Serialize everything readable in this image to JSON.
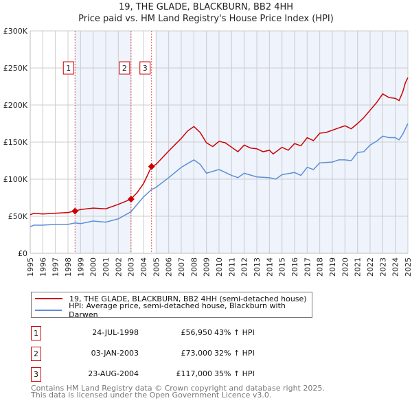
{
  "chart_data": {
    "type": "line",
    "title": "19, THE GLADE, BLACKBURN, BB2 4HH",
    "subtitle": "Price paid vs. HM Land Registry's House Price Index (HPI)",
    "xlim": [
      1995,
      2025
    ],
    "ylim": [
      0,
      300000
    ],
    "yticks": [
      {
        "v": 0,
        "label": "£0"
      },
      {
        "v": 50000,
        "label": "£50K"
      },
      {
        "v": 100000,
        "label": "£100K"
      },
      {
        "v": 150000,
        "label": "£150K"
      },
      {
        "v": 200000,
        "label": "£200K"
      },
      {
        "v": 250000,
        "label": "£250K"
      },
      {
        "v": 300000,
        "label": "£300K"
      }
    ],
    "xticks": [
      "1995",
      "1996",
      "1997",
      "1998",
      "1999",
      "2000",
      "2001",
      "2002",
      "2003",
      "2004",
      "2005",
      "2006",
      "2007",
      "2008",
      "2009",
      "2010",
      "2011",
      "2012",
      "2013",
      "2014",
      "2015",
      "2016",
      "2017",
      "2018",
      "2019",
      "2020",
      "2021",
      "2022",
      "2023",
      "2024",
      "2025"
    ],
    "grid": true,
    "series": [
      {
        "name": "19, THE GLADE, BLACKBURN, BB2 4HH (semi-detached house)",
        "color": "#cc0000",
        "x": [
          1995,
          1995.3,
          1996,
          1997,
          1998,
          1998.56,
          1999,
          2000,
          2001,
          2002,
          2003,
          2003.5,
          2004,
          2004.64,
          2005,
          2006,
          2007,
          2007.5,
          2008,
          2008.5,
          2009,
          2009.5,
          2010,
          2010.5,
          2011,
          2011.5,
          2012,
          2012.5,
          2013,
          2013.5,
          2014,
          2014.3,
          2015,
          2015.5,
          2016,
          2016.5,
          2017,
          2017.5,
          2018,
          2018.5,
          2019,
          2019.5,
          2020,
          2020.5,
          2021,
          2021.5,
          2022,
          2022.5,
          2023,
          2023.5,
          2024,
          2024.3,
          2024.6,
          2024.8,
          2025
        ],
        "y": [
          52000,
          54000,
          53000,
          54000,
          55000,
          57000,
          59000,
          61000,
          60000,
          66000,
          73000,
          82000,
          94000,
          117000,
          120000,
          138000,
          155000,
          165000,
          171000,
          163000,
          149000,
          144000,
          151000,
          149000,
          143000,
          137000,
          146000,
          142000,
          141000,
          137000,
          139000,
          134000,
          143000,
          139000,
          148000,
          145000,
          156000,
          152000,
          162000,
          163000,
          166000,
          169000,
          172000,
          168000,
          175000,
          183000,
          193000,
          203000,
          215000,
          210000,
          209000,
          206000,
          218000,
          230000,
          237000
        ]
      },
      {
        "name": "HPI: Average price, semi-detached house, Blackburn with Darwen",
        "color": "#5b8fd6",
        "x": [
          1995,
          1995.3,
          1996,
          1997,
          1998,
          1998.56,
          1999,
          2000,
          2001,
          2002,
          2003,
          2004,
          2004.64,
          2005,
          2006,
          2007,
          2008,
          2008.5,
          2009,
          2010,
          2011,
          2011.5,
          2012,
          2013,
          2014,
          2014.5,
          2015,
          2016,
          2016.5,
          2017,
          2017.5,
          2018,
          2019,
          2019.5,
          2020,
          2020.5,
          2021,
          2021.5,
          2022,
          2022.5,
          2023,
          2023.5,
          2024,
          2024.3,
          2024.6,
          2025
        ],
        "y": [
          36000,
          38000,
          38000,
          39000,
          39000,
          41000,
          40000,
          43500,
          42000,
          46500,
          56000,
          76000,
          86000,
          89000,
          102000,
          116000,
          126000,
          120000,
          108000,
          113000,
          105000,
          102000,
          108000,
          103000,
          102000,
          100000,
          106000,
          109000,
          105000,
          116000,
          113000,
          122000,
          123000,
          126000,
          126000,
          125000,
          136000,
          137000,
          146000,
          151000,
          158000,
          156000,
          156000,
          153000,
          161000,
          175000
        ]
      }
    ],
    "sales": [
      {
        "n": "1",
        "x": 1998.56,
        "date": "24-JUL-1998",
        "price": 56950,
        "price_label": "£56,950",
        "hpi": "43% ↑ HPI"
      },
      {
        "n": "2",
        "x": 2003.01,
        "date": "03-JAN-2003",
        "price": 73000,
        "price_label": "£73,000",
        "hpi": "32% ↑ HPI"
      },
      {
        "n": "3",
        "x": 2004.64,
        "date": "23-AUG-2004",
        "price": 117000,
        "price_label": "£117,000",
        "hpi": "35% ↑ HPI"
      }
    ],
    "shaded_ranges": [
      [
        1998.56,
        2003.01
      ],
      [
        2005.0,
        2025
      ]
    ],
    "marker_label_value": 250000
  },
  "footer": {
    "line1": "Contains HM Land Registry data © Crown copyright and database right 2025.",
    "line2": "This data is licensed under the Open Government Licence v3.0."
  },
  "colors": {
    "red": "#cc0000",
    "blue": "#5b8fd6",
    "shade": "#eef3fc"
  }
}
